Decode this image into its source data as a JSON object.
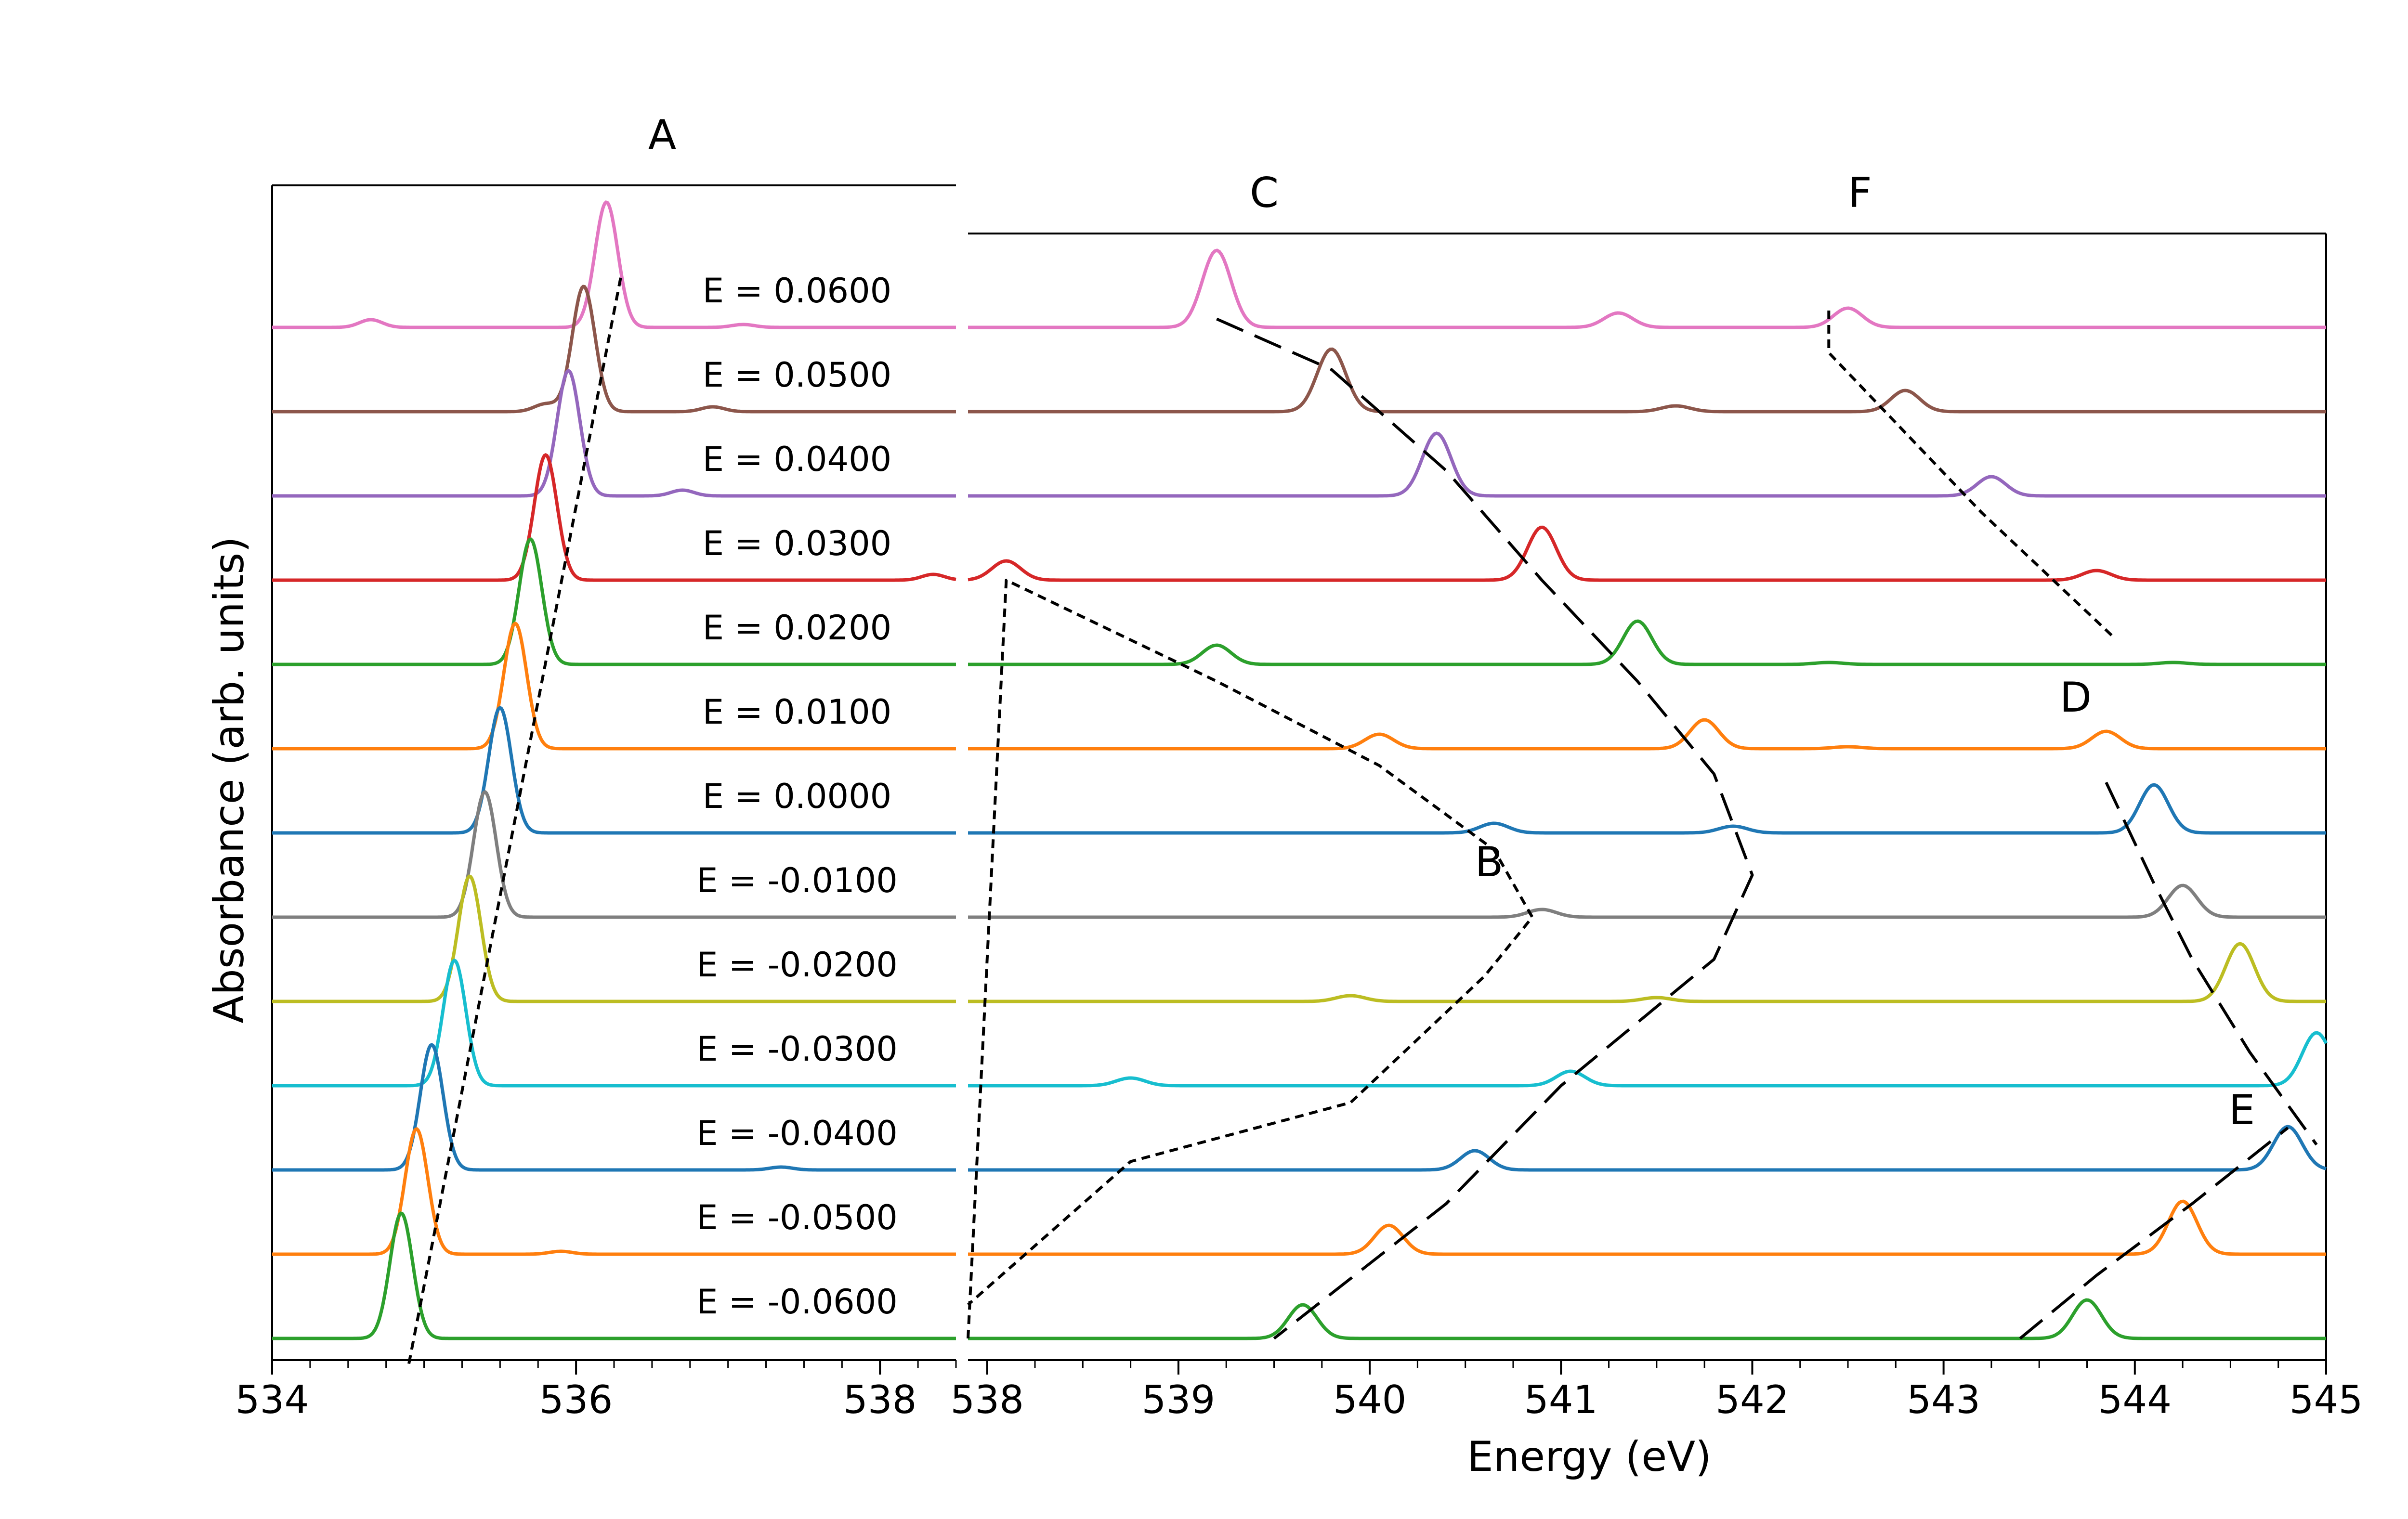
{
  "chart_data": {
    "type": "line",
    "xlabel": "Energy (eV)",
    "ylabel": "Absorbance (arb. units)",
    "panels": [
      {
        "id": "left",
        "xlim": [
          534,
          538.5
        ],
        "xticks": [
          534,
          536,
          538
        ],
        "xtick_labels": [
          "534",
          "536",
          "538"
        ]
      },
      {
        "id": "right",
        "xlim": [
          537.9,
          545
        ],
        "xticks": [
          538,
          539,
          540,
          541,
          542,
          543,
          544,
          545
        ],
        "xtick_labels": [
          "538",
          "539",
          "540",
          "541",
          "542",
          "543",
          "544",
          "545"
        ]
      }
    ],
    "series": [
      {
        "name": "E = 0.0600",
        "color": "#e377c2",
        "left_peaks": [
          [
            534.65,
            0.08
          ],
          [
            536.2,
            1.3
          ],
          [
            537.1,
            0.03
          ]
        ],
        "right_peaks": [
          [
            539.2,
            0.8
          ],
          [
            541.3,
            0.15
          ],
          [
            542.5,
            0.2
          ]
        ]
      },
      {
        "name": "E = 0.0500",
        "color": "#8c564b",
        "left_peaks": [
          [
            535.8,
            0.08
          ],
          [
            536.05,
            1.3
          ],
          [
            536.9,
            0.05
          ]
        ],
        "right_peaks": [
          [
            539.8,
            0.65
          ],
          [
            541.6,
            0.06
          ],
          [
            542.8,
            0.22
          ]
        ]
      },
      {
        "name": "E = 0.0400",
        "color": "#9467bd",
        "left_peaks": [
          [
            535.95,
            1.3
          ],
          [
            536.7,
            0.06
          ]
        ],
        "right_peaks": [
          [
            540.35,
            0.65
          ],
          [
            543.25,
            0.2
          ]
        ]
      },
      {
        "name": "E = 0.0300",
        "color": "#d62728",
        "left_peaks": [
          [
            535.8,
            1.3
          ],
          [
            538.35,
            0.06
          ]
        ],
        "right_peaks": [
          [
            538.1,
            0.2
          ],
          [
            540.9,
            0.55
          ],
          [
            543.8,
            0.1
          ]
        ]
      },
      {
        "name": "E = 0.0200",
        "color": "#2ca02c",
        "left_peaks": [
          [
            535.7,
            1.3
          ]
        ],
        "right_peaks": [
          [
            539.2,
            0.2
          ],
          [
            541.4,
            0.45
          ],
          [
            542.4,
            0.02
          ],
          [
            544.2,
            0.02
          ]
        ]
      },
      {
        "name": "E = 0.0100",
        "color": "#ff7f0e",
        "left_peaks": [
          [
            535.6,
            1.3
          ]
        ],
        "right_peaks": [
          [
            540.05,
            0.15
          ],
          [
            541.75,
            0.3
          ],
          [
            542.5,
            0.02
          ],
          [
            543.85,
            0.18
          ]
        ]
      },
      {
        "name": "E = 0.0000",
        "color": "#1f77b4",
        "left_peaks": [
          [
            535.5,
            1.3
          ]
        ],
        "right_peaks": [
          [
            540.65,
            0.1
          ],
          [
            541.9,
            0.07
          ],
          [
            544.1,
            0.5
          ]
        ]
      },
      {
        "name": "E = -0.0100",
        "color": "#7f7f7f",
        "left_peaks": [
          [
            535.4,
            1.3
          ]
        ],
        "right_peaks": [
          [
            540.9,
            0.08
          ],
          [
            544.25,
            0.33
          ]
        ]
      },
      {
        "name": "E = -0.0200",
        "color": "#bcbd22",
        "left_peaks": [
          [
            535.3,
            1.3
          ]
        ],
        "right_peaks": [
          [
            539.9,
            0.06
          ],
          [
            541.5,
            0.04
          ],
          [
            544.55,
            0.6
          ]
        ]
      },
      {
        "name": "E = -0.0300",
        "color": "#17becf",
        "left_peaks": [
          [
            535.2,
            1.3
          ]
        ],
        "right_peaks": [
          [
            538.75,
            0.08
          ],
          [
            541.05,
            0.15
          ],
          [
            544.95,
            0.55
          ]
        ]
      },
      {
        "name": "E = -0.0400",
        "color": "#1f77b4",
        "left_peaks": [
          [
            535.05,
            1.3
          ],
          [
            537.35,
            0.03
          ]
        ],
        "right_peaks": [
          [
            540.55,
            0.2
          ],
          [
            544.8,
            0.45
          ]
        ]
      },
      {
        "name": "E = -0.0500",
        "color": "#ff7f0e",
        "left_peaks": [
          [
            534.95,
            1.3
          ],
          [
            535.9,
            0.03
          ]
        ],
        "right_peaks": [
          [
            540.1,
            0.3
          ],
          [
            544.25,
            0.55
          ]
        ]
      },
      {
        "name": "E = -0.0600",
        "color": "#2ca02c",
        "left_peaks": [
          [
            534.85,
            1.3
          ]
        ],
        "right_peaks": [
          [
            539.65,
            0.35
          ],
          [
            543.75,
            0.4
          ]
        ]
      }
    ],
    "annotations": [
      {
        "label": "A",
        "panel": "left",
        "x": [
          534.9,
          536.3
        ],
        "trace": [
          12.3,
          -0.65
        ],
        "style": "short-dash"
      },
      {
        "label": "B",
        "panel": "right",
        "x": [
          537.9,
          538.1,
          539.2,
          540.05,
          540.65,
          540.85,
          540.6,
          539.9,
          538.75,
          537.9
        ],
        "trace": [
          12.0,
          3.0,
          4.2,
          5.2,
          6.2,
          7.0,
          7.7,
          9.2,
          9.9,
          11.6
        ],
        "style": "short-dash"
      },
      {
        "label": "C",
        "panel": "right",
        "x": [
          539.2,
          539.8,
          540.4,
          540.9,
          541.4,
          541.8,
          542.0,
          541.8,
          541.0,
          540.4,
          539.5
        ],
        "trace": [
          -0.1,
          0.5,
          1.7,
          3.0,
          4.2,
          5.3,
          6.5,
          7.5,
          9.0,
          10.4,
          12.0
        ],
        "style": "long-dash"
      },
      {
        "label": "D",
        "panel": "right",
        "x": [
          543.85,
          544.1,
          544.3,
          544.6,
          544.95
        ],
        "trace": [
          5.4,
          6.6,
          7.5,
          8.6,
          9.7
        ],
        "style": "long-dash"
      },
      {
        "label": "E",
        "panel": "right",
        "x": [
          543.4,
          543.8,
          544.3,
          544.8
        ],
        "trace": [
          12.0,
          11.25,
          10.4,
          9.5
        ],
        "style": "long-dash"
      },
      {
        "label": "F",
        "panel": "right",
        "x": [
          542.4,
          542.4,
          543.2,
          543.9
        ],
        "trace": [
          -0.2,
          0.3,
          2.2,
          3.7
        ],
        "style": "short-dash"
      }
    ]
  }
}
